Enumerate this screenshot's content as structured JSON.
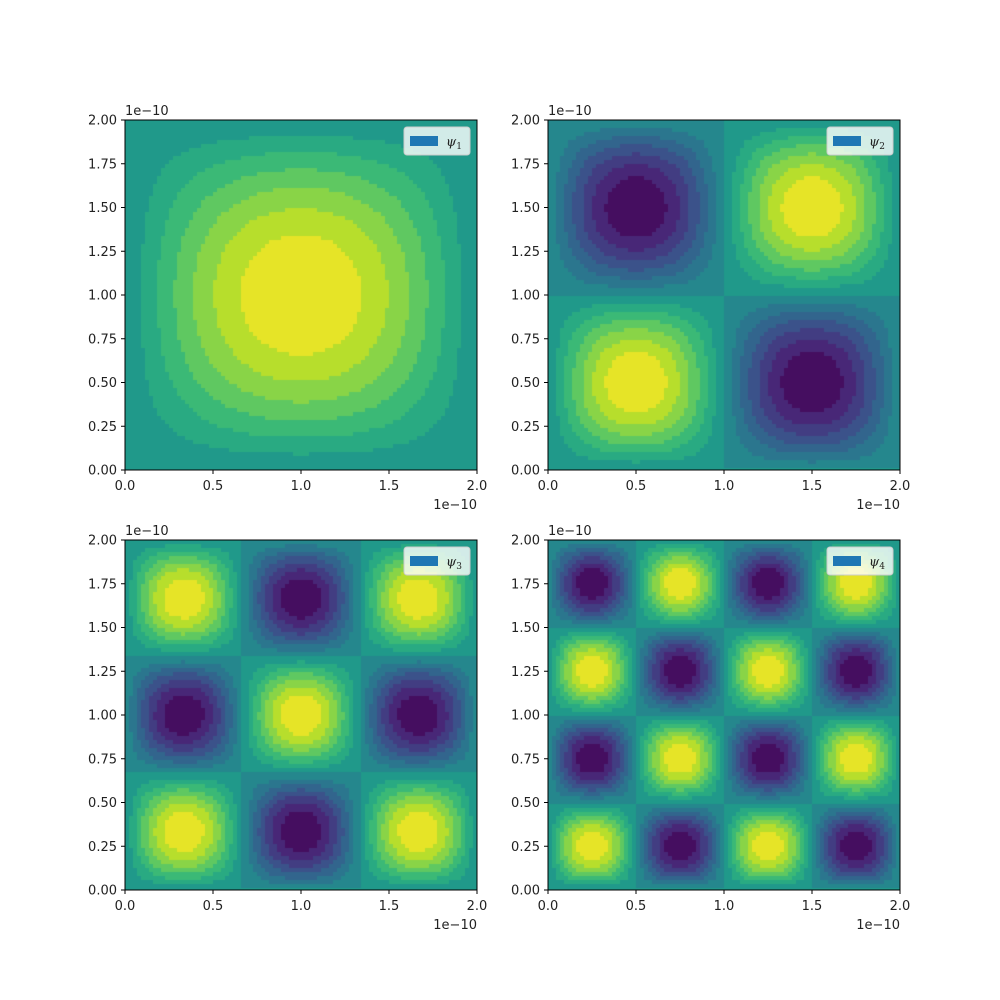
{
  "chart_data": [
    {
      "type": "contourf",
      "function": "sin(pi*n*x/L)*sin(pi*n*y/L)",
      "n": 1,
      "L": 2.0,
      "levels": 14,
      "colormap": "viridis",
      "legend": {
        "symbol": "ψ",
        "subscript": "1",
        "position": "top-right"
      },
      "xlim": [
        0.0,
        2.0
      ],
      "ylim": [
        0.0,
        2.0
      ],
      "xticks": [
        "0.0",
        "0.5",
        "1.0",
        "1.5",
        "2.0"
      ],
      "yticks": [
        "0.00",
        "0.25",
        "0.50",
        "0.75",
        "1.00",
        "1.25",
        "1.50",
        "1.75",
        "2.00"
      ],
      "x_offset": "1e−10",
      "y_offset": "1e−10"
    },
    {
      "type": "contourf",
      "function": "sin(pi*n*x/L)*sin(pi*n*y/L)",
      "n": 2,
      "L": 2.0,
      "levels": 14,
      "colormap": "viridis",
      "legend": {
        "symbol": "ψ",
        "subscript": "2",
        "position": "top-right"
      },
      "xlim": [
        0.0,
        2.0
      ],
      "ylim": [
        0.0,
        2.0
      ],
      "xticks": [
        "0.0",
        "0.5",
        "1.0",
        "1.5",
        "2.0"
      ],
      "yticks": [
        "0.00",
        "0.25",
        "0.50",
        "0.75",
        "1.00",
        "1.25",
        "1.50",
        "1.75",
        "2.00"
      ],
      "x_offset": "1e−10",
      "y_offset": "1e−10"
    },
    {
      "type": "contourf",
      "function": "sin(pi*n*x/L)*sin(pi*n*y/L)",
      "n": 3,
      "L": 2.0,
      "levels": 14,
      "colormap": "viridis",
      "legend": {
        "symbol": "ψ",
        "subscript": "3",
        "position": "top-right"
      },
      "xlim": [
        0.0,
        2.0
      ],
      "ylim": [
        0.0,
        2.0
      ],
      "xticks": [
        "0.0",
        "0.5",
        "1.0",
        "1.5",
        "2.0"
      ],
      "yticks": [
        "0.00",
        "0.25",
        "0.50",
        "0.75",
        "1.00",
        "1.25",
        "1.50",
        "1.75",
        "2.00"
      ],
      "x_offset": "1e−10",
      "y_offset": "1e−10"
    },
    {
      "type": "contourf",
      "function": "sin(pi*n*x/L)*sin(pi*n*y/L)",
      "n": 4,
      "L": 2.0,
      "levels": 14,
      "colormap": "viridis",
      "legend": {
        "symbol": "ψ",
        "subscript": "4",
        "position": "top-right"
      },
      "xlim": [
        0.0,
        2.0
      ],
      "ylim": [
        0.0,
        2.0
      ],
      "xticks": [
        "0.0",
        "0.5",
        "1.0",
        "1.5",
        "2.0"
      ],
      "yticks": [
        "0.00",
        "0.25",
        "0.50",
        "0.75",
        "1.00",
        "1.25",
        "1.50",
        "1.75",
        "2.00"
      ],
      "x_offset": "1e−10",
      "y_offset": "1e−10"
    }
  ],
  "colors": {
    "legend_patch": "#1f77b4",
    "axes_edge": "#000000",
    "background": "#ffffff"
  }
}
